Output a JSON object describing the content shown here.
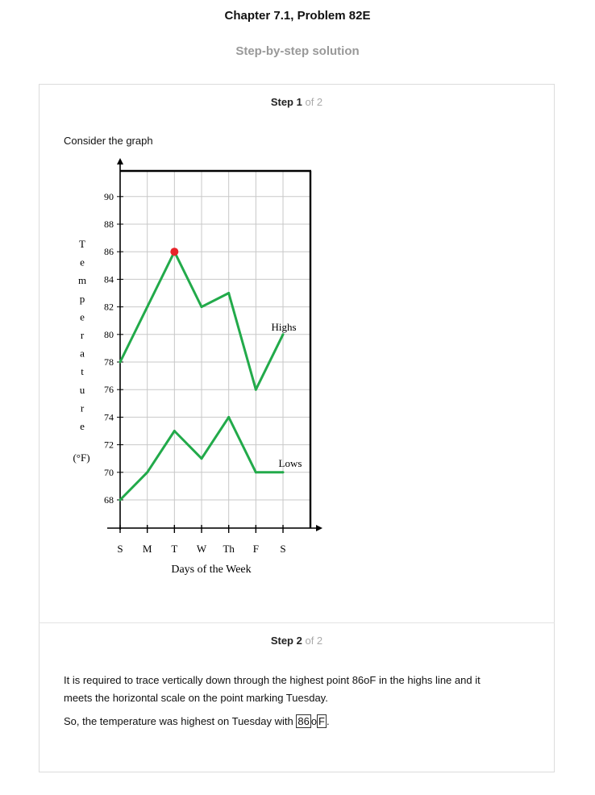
{
  "header": {
    "title": "Chapter 7.1, Problem 82E",
    "subtitle": "Step-by-step solution"
  },
  "step1": {
    "label": "Step 1",
    "of": "of 2",
    "intro": "Consider the graph"
  },
  "step2": {
    "label": "Step 2",
    "of": "of 2",
    "line1": "It is required to trace vertically down through the highest point 86oF in the highs line and it",
    "line2": "meets the horizontal scale on the point marking Tuesday.",
    "line3_prefix": "So, the temperature was highest on Tuesday with ",
    "answer_value": "86",
    "answer_o": "o",
    "answer_unit": "F",
    "line3_suffix": "."
  },
  "chart_data": {
    "type": "line",
    "categories": [
      "S",
      "M",
      "T",
      "W",
      "Th",
      "F",
      "S"
    ],
    "series": [
      {
        "name": "Highs",
        "values": [
          78,
          82,
          86,
          82,
          83,
          76,
          80
        ]
      },
      {
        "name": "Lows",
        "values": [
          68,
          70,
          73,
          71,
          74,
          70,
          70
        ]
      }
    ],
    "highlight": {
      "category": "T",
      "value": 86,
      "color": "#e8232a"
    },
    "y_ticks": [
      68,
      70,
      72,
      74,
      76,
      78,
      80,
      82,
      84,
      86,
      88,
      90
    ],
    "ylim": [
      66,
      92
    ],
    "ylabel_letters": [
      "T",
      "e",
      "m",
      "p",
      "e",
      "r",
      "a",
      "t",
      "u",
      "r",
      "e"
    ],
    "ylabel_unit": "(°F)",
    "xlabel": "Days of the Week",
    "line_color": "#22aa4a",
    "grid": true
  }
}
